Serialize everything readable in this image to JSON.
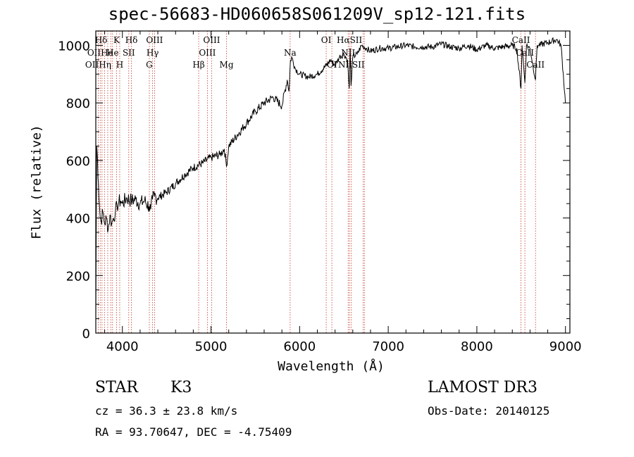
{
  "chart_data": {
    "type": "line",
    "title": "spec-56683-HD060658S061209V_sp12-121.fits",
    "xlabel": "Wavelength (Å)",
    "ylabel": "Flux (relative)",
    "xlim": [
      3700,
      9050
    ],
    "ylim": [
      0,
      1050
    ],
    "xticks": [
      4000,
      5000,
      6000,
      7000,
      8000,
      9000
    ],
    "yticks": [
      0,
      200,
      400,
      600,
      800,
      1000
    ],
    "grid": false,
    "series": [
      {
        "x": [
          3700,
          3710,
          3720,
          3730,
          3740,
          3750,
          3760,
          3780,
          3800,
          3820,
          3840,
          3860,
          3880,
          3900,
          3920,
          3940,
          3960,
          3980,
          4000,
          4050,
          4100,
          4150,
          4200,
          4250,
          4300,
          4320,
          4340,
          4360,
          4400,
          4500,
          4600,
          4700,
          4800,
          4900,
          5000,
          5100,
          5150,
          5175,
          5200,
          5300,
          5400,
          5500,
          5600,
          5700,
          5800,
          5860,
          5880,
          5895,
          5910,
          5950,
          6000,
          6100,
          6200,
          6300,
          6350,
          6400,
          6450,
          6500,
          6540,
          6560,
          6570,
          6580,
          6600,
          6650,
          6700,
          6750,
          6800,
          6900,
          7000,
          7100,
          7200,
          7300,
          7400,
          7500,
          7600,
          7700,
          7800,
          7900,
          8000,
          8100,
          8200,
          8300,
          8400,
          8450,
          8498,
          8510,
          8542,
          8560,
          8600,
          8662,
          8680,
          8700,
          8800,
          8900,
          8950,
          9000
        ],
        "y": [
          60,
          650,
          600,
          520,
          450,
          400,
          390,
          420,
          380,
          400,
          360,
          410,
          380,
          400,
          420,
          440,
          455,
          460,
          450,
          470,
          460,
          465,
          450,
          460,
          440,
          430,
          465,
          475,
          470,
          490,
          520,
          550,
          575,
          590,
          610,
          620,
          640,
          580,
          650,
          690,
          730,
          770,
          800,
          820,
          790,
          880,
          840,
          940,
          960,
          920,
          900,
          890,
          900,
          930,
          950,
          930,
          960,
          970,
          950,
          850,
          990,
          860,
          960,
          970,
          1000,
          990,
          980,
          990,
          990,
          995,
          1000,
          995,
          995,
          995,
          1005,
          995,
          990,
          1000,
          985,
          1000,
          990,
          995,
          1000,
          990,
          850,
          1000,
          870,
          1000,
          990,
          880,
          1000,
          1000,
          1010,
          1020,
          1000,
          800
        ]
      }
    ],
    "line_labels": [
      {
        "text": "Hδ",
        "x": 3760,
        "row": 0
      },
      {
        "text": "K",
        "x": 3934,
        "row": 0
      },
      {
        "text": "Hδ",
        "x": 4102,
        "row": 0
      },
      {
        "text": "OIII",
        "x": 4363,
        "row": 0
      },
      {
        "text": "OIII",
        "x": 5007,
        "row": 0
      },
      {
        "text": "OI",
        "x": 6300,
        "row": 0
      },
      {
        "text": "HαSII",
        "x": 6563,
        "row": 0
      },
      {
        "text": "CaII",
        "x": 8498,
        "row": 0
      },
      {
        "text": "OIIHe",
        "x": 3750,
        "row": 1
      },
      {
        "text": "He",
        "x": 3889,
        "row": 1
      },
      {
        "text": "SII",
        "x": 4072,
        "row": 1
      },
      {
        "text": "Hγ",
        "x": 4341,
        "row": 1
      },
      {
        "text": "OIII",
        "x": 4959,
        "row": 1
      },
      {
        "text": "Na",
        "x": 5893,
        "row": 1
      },
      {
        "text": "NII",
        "x": 6548,
        "row": 1
      },
      {
        "text": "CaII",
        "x": 8542,
        "row": 1
      },
      {
        "text": "OIIHη",
        "x": 3727,
        "row": 2
      },
      {
        "text": "H",
        "x": 3970,
        "row": 2
      },
      {
        "text": "G",
        "x": 4304,
        "row": 2
      },
      {
        "text": "Hβ",
        "x": 4861,
        "row": 2
      },
      {
        "text": "Mg",
        "x": 5175,
        "row": 2
      },
      {
        "text": "OI",
        "x": 6364,
        "row": 2
      },
      {
        "text": "NIISII",
        "x": 6584,
        "row": 2
      },
      {
        "text": "CaII",
        "x": 8662,
        "row": 2
      }
    ],
    "line_markers": [
      3727,
      3750,
      3770,
      3798,
      3835,
      3869,
      3889,
      3934,
      3970,
      4072,
      4102,
      4304,
      4341,
      4363,
      4861,
      4959,
      5007,
      5175,
      5893,
      6300,
      6364,
      6548,
      6563,
      6584,
      6717,
      6731,
      8498,
      8542,
      8662
    ]
  },
  "footer": {
    "class_label": "STAR",
    "subclass": "K3",
    "survey": "LAMOST DR3",
    "cz": "cz = 36.3 ± 23.8 km/s",
    "obs_date": "Obs-Date: 20140125",
    "coords": "RA =  93.70647, DEC =  -4.75409"
  },
  "colors": {
    "marker": "#c0392b",
    "ink": "#000000"
  }
}
